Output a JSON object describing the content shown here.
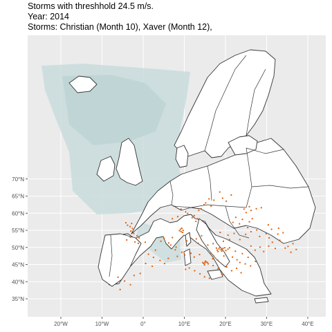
{
  "title": {
    "line1": "Storms with threshhold 24.5 m/s.",
    "line2": "Year: 2014",
    "line3": "Storms: Christian (Month 10), Xaver (Month 12),"
  },
  "map": {
    "lon_range": [
      -28,
      42
    ],
    "lat_range": [
      32,
      73
    ],
    "x_ticks": [
      {
        "lon": -20,
        "label": "20°W"
      },
      {
        "lon": -10,
        "label": "10°W"
      },
      {
        "lon": 0,
        "label": "0°"
      },
      {
        "lon": 10,
        "label": "10°E"
      },
      {
        "lon": 20,
        "label": "20°E"
      },
      {
        "lon": 30,
        "label": "30°E"
      },
      {
        "lon": 40,
        "label": "40°E"
      }
    ],
    "y_ticks": [
      {
        "lat": 35,
        "label": "35°N"
      },
      {
        "lat": 40,
        "label": "40°N"
      },
      {
        "lat": 45,
        "label": "45°N"
      },
      {
        "lat": 50,
        "label": "50°N"
      },
      {
        "lat": 55,
        "label": "55°N"
      },
      {
        "lat": 60,
        "label": "60°N"
      },
      {
        "lat": 65,
        "label": "65°N"
      },
      {
        "lat": 70,
        "label": "70°N"
      }
    ],
    "colors": {
      "panel_bg": "#ebebeb",
      "grid": "#ffffff",
      "wind_field": "#c9dcdc",
      "wind_field_dark": "#b4cfcf",
      "land": "#ffffff",
      "border": "#333333",
      "storm_points": "#e0600a"
    },
    "storm_points": [
      [
        15.3,
        45.8
      ],
      [
        15.0,
        45.5
      ],
      [
        14.7,
        45.3
      ],
      [
        15.6,
        45.6
      ],
      [
        15.1,
        46.0
      ],
      [
        14.5,
        45.6
      ],
      [
        15.8,
        45.2
      ],
      [
        14.9,
        44.9
      ],
      [
        18.4,
        49.6
      ],
      [
        18.9,
        49.3
      ],
      [
        19.4,
        49.7
      ],
      [
        18.0,
        49.2
      ],
      [
        19.8,
        49.9
      ],
      [
        18.6,
        50.0
      ],
      [
        17.8,
        49.8
      ],
      [
        20.1,
        49.1
      ],
      [
        18.2,
        48.8
      ],
      [
        20.6,
        49.5
      ],
      [
        19.1,
        48.9
      ],
      [
        21.0,
        49.9
      ],
      [
        9.1,
        55.3
      ],
      [
        9.4,
        55.6
      ],
      [
        8.8,
        54.9
      ],
      [
        9.7,
        55.0
      ],
      [
        9.2,
        54.6
      ],
      [
        9.6,
        54.4
      ],
      [
        25.0,
        60.2
      ],
      [
        26.2,
        60.8
      ],
      [
        27.5,
        61.3
      ],
      [
        28.7,
        61.6
      ],
      [
        25.8,
        61.9
      ],
      [
        24.5,
        61.2
      ],
      [
        15.2,
        63.0
      ],
      [
        14.8,
        62.5
      ],
      [
        16.0,
        64.2
      ],
      [
        17.2,
        63.8
      ],
      [
        14.1,
        61.3
      ],
      [
        13.5,
        60.8
      ],
      [
        16.5,
        62.1
      ],
      [
        12.4,
        59.3
      ],
      [
        11.9,
        58.7
      ],
      [
        13.2,
        58.4
      ],
      [
        12.8,
        57.6
      ],
      [
        -3.2,
        56.1
      ],
      [
        -3.8,
        56.5
      ],
      [
        -4.2,
        57.2
      ],
      [
        -2.8,
        57.0
      ],
      [
        -3.0,
        54.8
      ],
      [
        -2.3,
        54.1
      ],
      [
        -1.5,
        53.4
      ],
      [
        -1.0,
        52.8
      ],
      [
        -2.0,
        51.6
      ],
      [
        -1.2,
        51.2
      ],
      [
        0.5,
        51.5
      ],
      [
        -4.0,
        52.2
      ],
      [
        -3.1,
        53.0
      ],
      [
        -2.6,
        55.5
      ],
      [
        4.1,
        46.2
      ],
      [
        2.5,
        47.1
      ],
      [
        1.3,
        48.0
      ],
      [
        5.2,
        45.3
      ],
      [
        6.1,
        46.8
      ],
      [
        3.0,
        49.2
      ],
      [
        2.2,
        44.5
      ],
      [
        0.6,
        45.3
      ],
      [
        8.3,
        47.4
      ],
      [
        10.1,
        47.8
      ],
      [
        11.6,
        48.3
      ],
      [
        12.4,
        47.2
      ],
      [
        13.7,
        47.9
      ],
      [
        9.4,
        48.6
      ],
      [
        7.8,
        49.3
      ],
      [
        16.4,
        48.2
      ],
      [
        17.1,
        47.6
      ],
      [
        16.9,
        46.7
      ],
      [
        18.1,
        46.3
      ],
      [
        19.6,
        47.5
      ],
      [
        21.7,
        47.2
      ],
      [
        22.8,
        46.4
      ],
      [
        23.5,
        45.6
      ],
      [
        24.8,
        45.2
      ],
      [
        26.1,
        44.6
      ],
      [
        27.3,
        45.9
      ],
      [
        25.5,
        47.1
      ],
      [
        24.1,
        48.2
      ],
      [
        22.4,
        48.9
      ],
      [
        26.2,
        50.4
      ],
      [
        28.4,
        50.1
      ],
      [
        30.5,
        50.4
      ],
      [
        32.1,
        49.7
      ],
      [
        29.3,
        48.8
      ],
      [
        27.2,
        49.2
      ],
      [
        31.4,
        51.5
      ],
      [
        23.5,
        52.3
      ],
      [
        24.9,
        53.8
      ],
      [
        26.2,
        54.6
      ],
      [
        25.4,
        55.8
      ],
      [
        27.6,
        55.1
      ],
      [
        29.9,
        54.0
      ],
      [
        28.3,
        53.2
      ],
      [
        30.6,
        52.8
      ],
      [
        33.2,
        52.1
      ],
      [
        32.7,
        53.9
      ],
      [
        31.2,
        55.3
      ],
      [
        30.4,
        56.6
      ],
      [
        32.9,
        55.6
      ],
      [
        34.0,
        54.3
      ],
      [
        21.0,
        52.3
      ],
      [
        19.5,
        51.8
      ],
      [
        17.0,
        51.1
      ],
      [
        20.6,
        53.6
      ],
      [
        22.1,
        54.1
      ],
      [
        18.7,
        54.4
      ],
      [
        14.2,
        53.4
      ],
      [
        12.9,
        52.5
      ],
      [
        11.3,
        53.9
      ],
      [
        13.4,
        51.2
      ],
      [
        10.6,
        51.9
      ],
      [
        15.7,
        50.7
      ],
      [
        21.8,
        57.3
      ],
      [
        23.4,
        56.9
      ],
      [
        24.1,
        58.2
      ],
      [
        26.5,
        58.4
      ],
      [
        22.5,
        58.8
      ],
      [
        25.8,
        57.5
      ],
      [
        20.3,
        44.3
      ],
      [
        21.5,
        43.2
      ],
      [
        22.7,
        43.9
      ],
      [
        23.8,
        42.6
      ],
      [
        19.4,
        42.1
      ],
      [
        18.2,
        43.8
      ],
      [
        17.0,
        44.7
      ],
      [
        13.8,
        42.3
      ],
      [
        12.5,
        43.2
      ],
      [
        11.2,
        44.0
      ],
      [
        10.3,
        43.6
      ],
      [
        14.9,
        41.4
      ],
      [
        16.1,
        41.0
      ],
      [
        35.2,
        50.3
      ],
      [
        36.4,
        51.1
      ],
      [
        37.2,
        49.4
      ],
      [
        35.9,
        48.6
      ],
      [
        34.5,
        49.8
      ],
      [
        -6.1,
        41.3
      ],
      [
        -4.5,
        40.2
      ],
      [
        -3.1,
        39.1
      ],
      [
        -5.6,
        37.7
      ],
      [
        -2.2,
        41.8
      ],
      [
        -0.7,
        42.4
      ],
      [
        5.1,
        52.6
      ],
      [
        4.3,
        51.8
      ],
      [
        6.2,
        51.3
      ],
      [
        7.1,
        52.9
      ],
      [
        8.0,
        50.1
      ],
      [
        6.7,
        50.7
      ],
      [
        19.3,
        64.4
      ],
      [
        21.4,
        65.3
      ],
      [
        18.6,
        66.2
      ],
      [
        20.2,
        63.5
      ],
      [
        10.8,
        59.9
      ],
      [
        10.3,
        60.4
      ],
      [
        9.2,
        61.2
      ],
      [
        8.4,
        59.0
      ],
      [
        7.1,
        58.4
      ]
    ]
  }
}
